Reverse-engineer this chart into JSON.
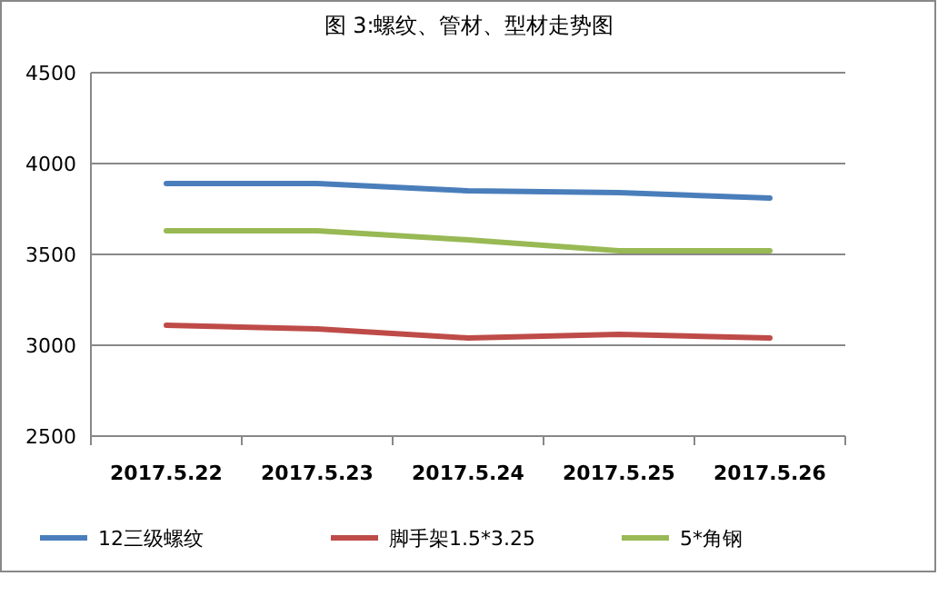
{
  "chart_data": {
    "type": "line",
    "title": "图 3:螺纹、管材、型材走势图",
    "categories": [
      "2017.5.22",
      "2017.5.23",
      "2017.5.24",
      "2017.5.25",
      "2017.5.26"
    ],
    "series": [
      {
        "name": "12三级螺纹",
        "color": "#4a7ebb",
        "values": [
          3890,
          3890,
          3850,
          3840,
          3810
        ]
      },
      {
        "name": "脚手架1.5*3.25",
        "color": "#be4b48",
        "values": [
          3110,
          3090,
          3040,
          3060,
          3040
        ]
      },
      {
        "name": "5*角钢",
        "color": "#98b954",
        "values": [
          3630,
          3630,
          3580,
          3520,
          3520
        ]
      }
    ],
    "ylim": [
      2500,
      4500
    ],
    "yticks": [
      2500,
      3000,
      3500,
      4000,
      4500
    ],
    "grid": "y",
    "legend": "bottom",
    "marker": "none",
    "line_style": "solid"
  }
}
